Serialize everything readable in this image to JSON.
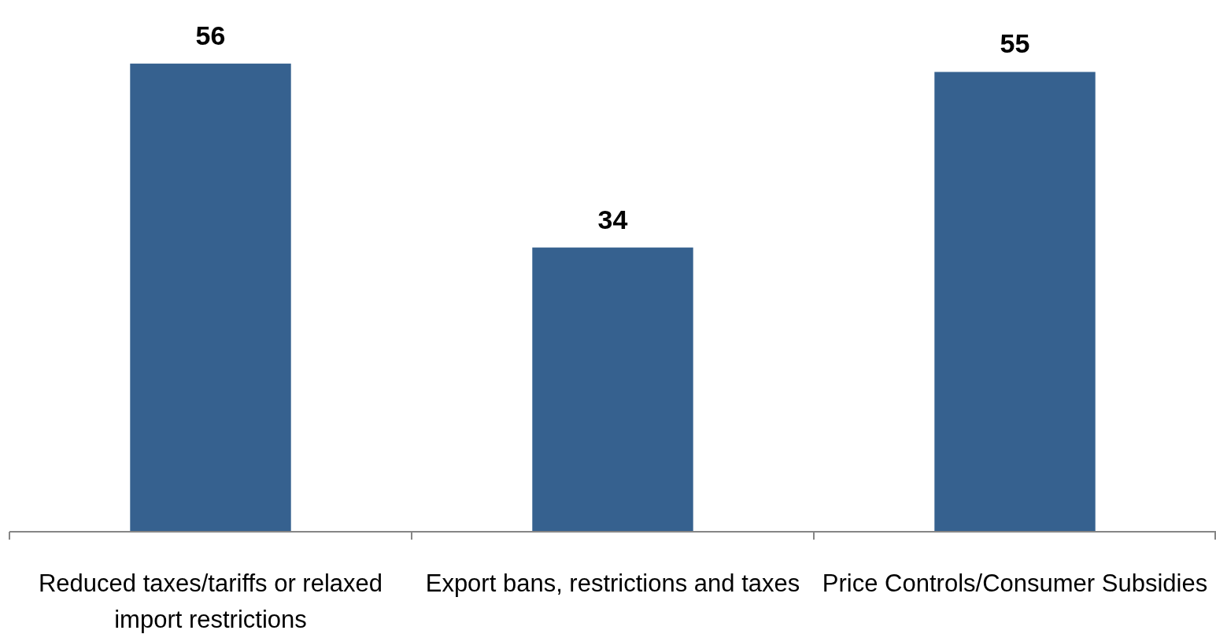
{
  "chart_data": {
    "type": "bar",
    "categories": [
      "Reduced taxes/tariffs or relaxed import restrictions",
      "Export bans, restrictions and taxes",
      "Price Controls/Consumer Subsidies"
    ],
    "values": [
      56,
      34,
      55
    ],
    "color": "#36618f",
    "data_labels": true
  }
}
